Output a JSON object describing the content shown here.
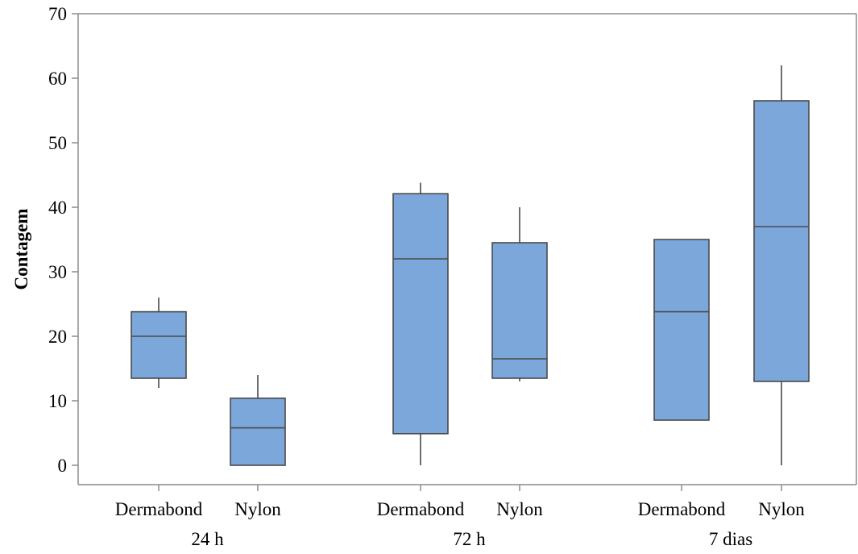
{
  "chart_data": {
    "type": "boxplot",
    "ylabel": "Contagem",
    "ylim": [
      -3,
      70
    ],
    "yticks": [
      0,
      10,
      20,
      30,
      40,
      50,
      60,
      70
    ],
    "box_color": "#7ba7db",
    "line_color": "#4a4a4a",
    "groups": [
      {
        "label": "24 h",
        "boxes": [
          {
            "name": "Dermabond",
            "min": 12,
            "q1": 13.5,
            "median": 20,
            "q3": 23.8,
            "max": 26
          },
          {
            "name": "Nylon",
            "min": 0,
            "q1": 0,
            "median": 5.8,
            "q3": 10.4,
            "max": 14
          }
        ]
      },
      {
        "label": "72 h",
        "boxes": [
          {
            "name": "Dermabond",
            "min": 0,
            "q1": 4.9,
            "median": 32,
            "q3": 42.1,
            "max": 43.8
          },
          {
            "name": "Nylon",
            "min": 13,
            "q1": 13.5,
            "median": 16.5,
            "q3": 34.5,
            "max": 40
          }
        ]
      },
      {
        "label": "7 dias",
        "boxes": [
          {
            "name": "Dermabond",
            "min": 7,
            "q1": 7,
            "median": 23.8,
            "q3": 35,
            "max": 35
          },
          {
            "name": "Nylon",
            "min": 0,
            "q1": 13,
            "median": 37,
            "q3": 56.5,
            "max": 62
          }
        ]
      }
    ]
  }
}
